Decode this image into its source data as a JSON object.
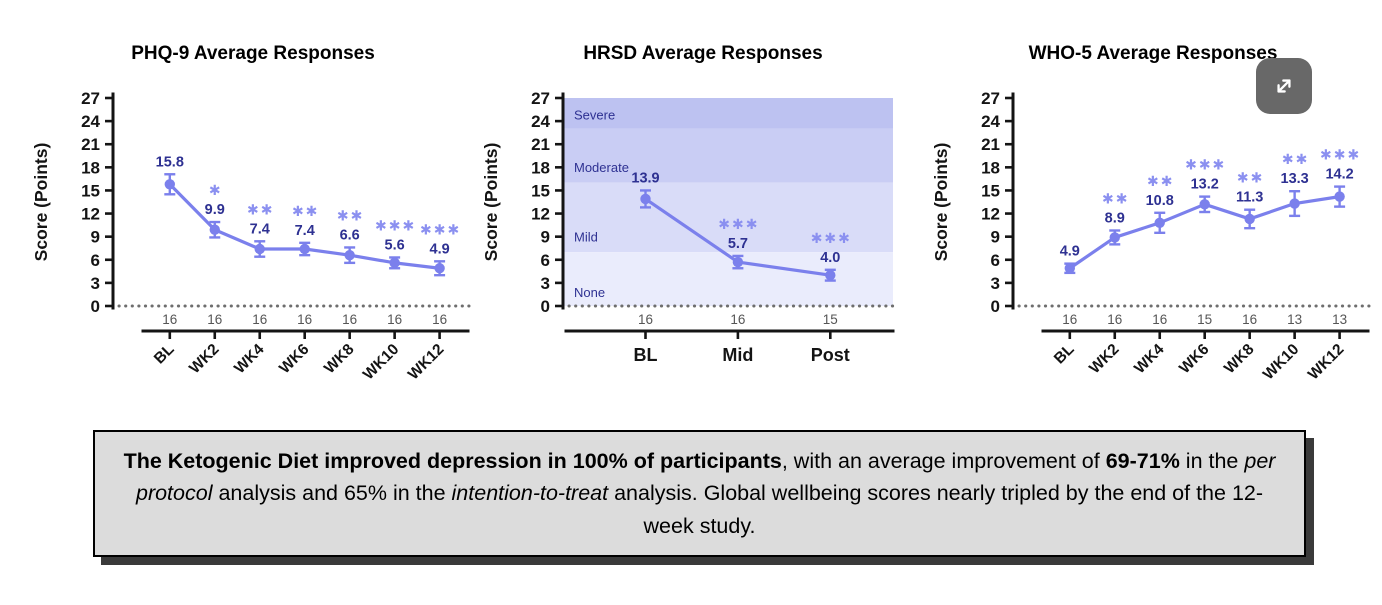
{
  "colors": {
    "series": "#7b80ec",
    "data_label": "#2e3192",
    "significance": "#8b90f0",
    "n_label": "#565656",
    "axis": "#141414",
    "zero_line": "#6e6e6e",
    "band_severe": "#bdc2f1",
    "band_moderate": "#c9cdf4",
    "band_mild": "#d9dcf8",
    "band_none": "#eaecfc",
    "summary_bg": "#dcdcdc",
    "summary_border": "#000000",
    "summary_shadow": "#3a3a3a",
    "expand_button_bg": "#686868"
  },
  "expand_button": {
    "label": "expand"
  },
  "chart_data": [
    {
      "type": "line",
      "title": "PHQ-9 Average Responses",
      "ylabel": "Score (Points)",
      "ylim": [
        0,
        27
      ],
      "yticks": [
        0,
        3,
        6,
        9,
        12,
        15,
        18,
        21,
        24,
        27
      ],
      "categories": [
        "BL",
        "WK2",
        "WK4",
        "WK6",
        "WK8",
        "WK10",
        "WK12"
      ],
      "values": [
        15.8,
        9.9,
        7.4,
        7.4,
        6.6,
        5.6,
        4.9
      ],
      "errors": [
        1.3,
        1.0,
        1.0,
        0.8,
        1.0,
        0.7,
        0.9
      ],
      "significance": [
        "",
        "*",
        "**",
        "**",
        "**",
        "***",
        "***"
      ],
      "n_per_timepoint": [
        16,
        16,
        16,
        16,
        16,
        16,
        16
      ],
      "zero_baseline_dotted": true,
      "x_labels_rotated": true,
      "grid": false,
      "bands": []
    },
    {
      "type": "line",
      "title": "HRSD Average Responses",
      "ylabel": "Score (Points)",
      "ylim": [
        0,
        27
      ],
      "yticks": [
        0,
        3,
        6,
        9,
        12,
        15,
        18,
        21,
        24,
        27
      ],
      "categories": [
        "BL",
        "Mid",
        "Post"
      ],
      "values": [
        13.9,
        5.7,
        4.0
      ],
      "errors": [
        1.1,
        0.8,
        0.7
      ],
      "significance": [
        "",
        "***",
        "***"
      ],
      "n_per_timepoint": [
        16,
        16,
        15
      ],
      "zero_baseline_dotted": true,
      "x_labels_rotated": false,
      "grid": false,
      "bands": [
        {
          "label": "Severe",
          "from": 23,
          "to": 27,
          "color": "#bdc2f1",
          "label_at": 24.2
        },
        {
          "label": "Moderate",
          "from": 16,
          "to": 23,
          "color": "#c9cdf4",
          "label_at": 17.4
        },
        {
          "label": "Mild",
          "from": 7,
          "to": 16,
          "color": "#d9dcf8",
          "label_at": 8.4
        },
        {
          "label": "None",
          "from": 0,
          "to": 7,
          "color": "#eaecfc",
          "label_at": 1.2
        }
      ]
    },
    {
      "type": "line",
      "title": "WHO-5 Average Responses",
      "ylabel": "Score (Points)",
      "ylim": [
        0,
        27
      ],
      "yticks": [
        0,
        3,
        6,
        9,
        12,
        15,
        18,
        21,
        24,
        27
      ],
      "categories": [
        "BL",
        "WK2",
        "WK4",
        "WK6",
        "WK8",
        "WK10",
        "WK12"
      ],
      "values": [
        4.9,
        8.9,
        10.8,
        13.2,
        11.3,
        13.3,
        14.2
      ],
      "errors": [
        0.6,
        0.9,
        1.3,
        1.0,
        1.2,
        1.6,
        1.3
      ],
      "significance": [
        "",
        "**",
        "**",
        "***",
        "**",
        "**",
        "***"
      ],
      "n_per_timepoint": [
        16,
        16,
        16,
        15,
        16,
        13,
        13
      ],
      "zero_baseline_dotted": true,
      "x_labels_rotated": true,
      "grid": false,
      "bands": []
    }
  ],
  "summary_box": {
    "segments": [
      {
        "text": "The Ketogenic Diet improved depression in 100% of participants",
        "bold": true,
        "italic": false
      },
      {
        "text": ", with an average improvement of ",
        "bold": false,
        "italic": false
      },
      {
        "text": "69-71%",
        "bold": true,
        "italic": false
      },
      {
        "text": " in the ",
        "bold": false,
        "italic": false
      },
      {
        "text": "per protocol",
        "bold": false,
        "italic": true
      },
      {
        "text": " analysis and 65% in the ",
        "bold": false,
        "italic": false
      },
      {
        "text": "intention-to-treat",
        "bold": false,
        "italic": true
      },
      {
        "text": " analysis. Global wellbeing scores nearly tripled by the end of the 12-week study.",
        "bold": false,
        "italic": false
      }
    ]
  }
}
